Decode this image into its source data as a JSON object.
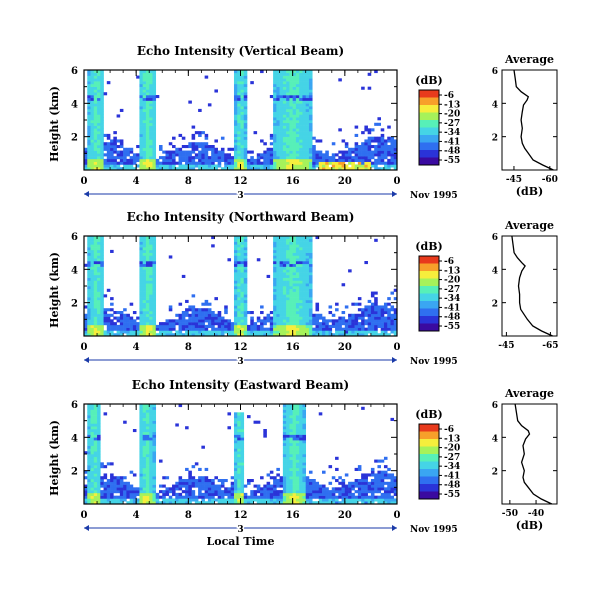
{
  "figure": {
    "xaxis_label": "Local Time",
    "date_day": "3",
    "date_label": "Nov 1995",
    "colorbar_unit": "(dB)",
    "colorbar_ticks": [
      "-6",
      "-13",
      "-20",
      "-27",
      "-34",
      "-41",
      "-48",
      "-55"
    ],
    "avg_title": "Average",
    "avg_xlabel": "(dB)"
  },
  "colors": {
    "colormap": [
      "#3a0aa0",
      "#2a33d8",
      "#2f6ff0",
      "#3aa6f2",
      "#45d4e6",
      "#57f0b8",
      "#a6f25a",
      "#f6ee3c",
      "#f7a02a",
      "#e83a1c"
    ],
    "frame": "#000000",
    "date_arrow": "#1a3aa8"
  },
  "chart_data": [
    {
      "type": "heatmap",
      "title": "Echo Intensity (Vertical Beam)",
      "xlabel": "",
      "ylabel": "Height (km)",
      "x_ticks": [
        "0",
        "4",
        "8",
        "12",
        "16",
        "20",
        "0"
      ],
      "x_range": [
        0,
        24
      ],
      "y_ticks": [
        "2",
        "4",
        "6"
      ],
      "y_range": [
        0,
        6
      ],
      "colorbar_range_db": [
        -55,
        -6
      ],
      "bright_layer_height_km": 4.4,
      "convective_columns_local_time": [
        {
          "start": 0.3,
          "end": 1.6,
          "top_km": 6.0
        },
        {
          "start": 4.2,
          "end": 5.6,
          "top_km": 6.0
        },
        {
          "start": 11.6,
          "end": 12.4,
          "top_km": 6.0
        },
        {
          "start": 14.5,
          "end": 17.5,
          "top_km": 6.0
        }
      ],
      "average_profile": {
        "title": "Average",
        "xlabel": "(dB)",
        "x_ticks": [
          "-45",
          "-60"
        ],
        "x_range": [
          -40,
          -63
        ],
        "y_ticks": [
          "2",
          "4",
          "6"
        ],
        "height_km": [
          0.0,
          0.3,
          0.6,
          1.0,
          1.3,
          1.6,
          2.0,
          2.5,
          3.0,
          3.5,
          3.9,
          4.2,
          4.4,
          4.7,
          5.0,
          5.5,
          6.0
        ],
        "value_db": [
          -61.5,
          -57.0,
          -53.0,
          -51.0,
          -49.5,
          -48.5,
          -48.0,
          -48.5,
          -48.0,
          -48.5,
          -49.0,
          -50.5,
          -51.0,
          -48.0,
          -46.0,
          -45.5,
          -45.0
        ]
      }
    },
    {
      "type": "heatmap",
      "title": "Echo Intensity (Northward Beam)",
      "xlabel": "",
      "ylabel": "Height (km)",
      "x_ticks": [
        "0",
        "4",
        "8",
        "12",
        "16",
        "20",
        "0"
      ],
      "x_range": [
        0,
        24
      ],
      "y_ticks": [
        "2",
        "4",
        "6"
      ],
      "y_range": [
        0,
        6
      ],
      "colorbar_range_db": [
        -55,
        -6
      ],
      "bright_layer_height_km": 4.4,
      "convective_columns_local_time": [
        {
          "start": 0.3,
          "end": 1.6,
          "top_km": 6.0
        },
        {
          "start": 4.2,
          "end": 5.6,
          "top_km": 6.0
        },
        {
          "start": 11.6,
          "end": 12.4,
          "top_km": 6.0
        },
        {
          "start": 14.5,
          "end": 17.5,
          "top_km": 6.0
        }
      ],
      "average_profile": {
        "title": "Average",
        "xlabel": "",
        "x_ticks": [
          "-45",
          "-65"
        ],
        "x_range": [
          -43,
          -68
        ],
        "y_ticks": [
          "2",
          "4",
          "6"
        ],
        "height_km": [
          0.0,
          0.3,
          0.6,
          1.0,
          1.3,
          1.6,
          2.0,
          2.5,
          3.0,
          3.5,
          3.9,
          4.2,
          4.4,
          4.7,
          5.0,
          5.5,
          6.0
        ],
        "value_db": [
          -66.0,
          -61.0,
          -57.0,
          -54.5,
          -53.0,
          -51.5,
          -51.0,
          -51.0,
          -50.5,
          -51.0,
          -52.0,
          -53.5,
          -52.0,
          -50.0,
          -48.5,
          -48.0,
          -47.5
        ]
      }
    },
    {
      "type": "heatmap",
      "title": "Echo Intensity (Eastward Beam)",
      "xlabel": "Local Time",
      "ylabel": "Height (km)",
      "x_ticks": [
        "0",
        "4",
        "8",
        "12",
        "16",
        "20",
        "0"
      ],
      "x_range": [
        0,
        24
      ],
      "y_ticks": [
        "2",
        "4",
        "6"
      ],
      "y_range": [
        0,
        6
      ],
      "colorbar_range_db": [
        -55,
        -6
      ],
      "bright_layer_height_km": 4.0,
      "convective_columns_local_time": [
        {
          "start": 0.3,
          "end": 1.3,
          "top_km": 6.0
        },
        {
          "start": 4.2,
          "end": 5.4,
          "top_km": 6.0
        },
        {
          "start": 11.6,
          "end": 12.3,
          "top_km": 5.5
        },
        {
          "start": 15.3,
          "end": 17.0,
          "top_km": 6.0
        }
      ],
      "average_profile": {
        "title": "Average",
        "xlabel": "(dB)",
        "x_ticks": [
          "-50",
          "-40"
        ],
        "x_range": [
          -53,
          -32
        ],
        "y_ticks": [
          "2",
          "4",
          "6"
        ],
        "height_km": [
          0.0,
          0.3,
          0.6,
          1.0,
          1.3,
          1.6,
          2.0,
          2.5,
          3.0,
          3.5,
          3.9,
          4.2,
          4.4,
          4.7,
          5.0,
          5.5,
          6.0
        ],
        "value_db": [
          -34.0,
          -38.0,
          -41.0,
          -43.0,
          -44.5,
          -45.0,
          -44.5,
          -45.5,
          -44.5,
          -45.0,
          -44.0,
          -42.5,
          -43.0,
          -45.5,
          -47.0,
          -47.5,
          -48.0
        ]
      }
    }
  ]
}
